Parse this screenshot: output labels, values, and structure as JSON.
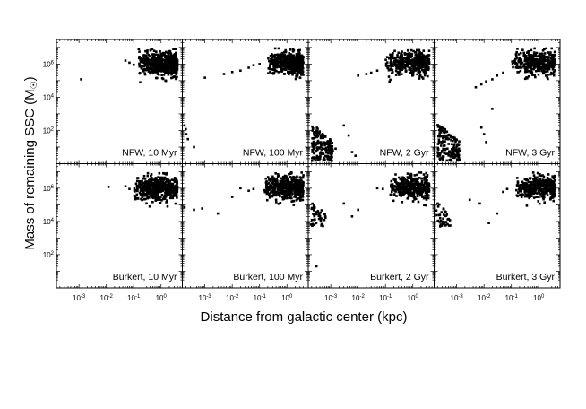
{
  "figure": {
    "xlabel": "Distance from galactic center (kpc)",
    "ylabel": "Mass of remaining SSC (M",
    "ylabel_unit_symbol": "☉",
    "ylabel_close": ")"
  },
  "chart_data": {
    "type": "scatter",
    "layout": {
      "rows": 2,
      "cols": 4,
      "shared_axes": true
    },
    "x_scale": "log",
    "y_scale": "log",
    "xlim": [
      0.00015,
      6
    ],
    "ylim": [
      1,
      30000000
    ],
    "x_tick_labels": [
      {
        "value": 0.001,
        "mantissa": "10",
        "exp": "-3"
      },
      {
        "value": 0.01,
        "mantissa": "10",
        "exp": "-2"
      },
      {
        "value": 0.1,
        "mantissa": "10",
        "exp": "-1"
      },
      {
        "value": 1,
        "mantissa": "10",
        "exp": "0"
      }
    ],
    "y_tick_labels": [
      {
        "value": 100,
        "mantissa": "10",
        "exp": "2"
      },
      {
        "value": 10000,
        "mantissa": "10",
        "exp": "4"
      },
      {
        "value": 1000000,
        "mantissa": "10",
        "exp": "6"
      }
    ],
    "marker_color": "#000000",
    "panels": [
      {
        "label": "NFW, 10 Myr",
        "row": 0,
        "col": 0,
        "main_cluster": {
          "x_range": [
            0.15,
            4
          ],
          "y_center": 1000000,
          "y_spread_dex": 0.35,
          "count": 550
        },
        "outliers": [
          [
            0.0012,
            120000
          ],
          [
            0.05,
            1600000
          ],
          [
            0.07,
            1200000
          ],
          [
            0.1,
            900000
          ]
        ],
        "core_band": null
      },
      {
        "label": "NFW, 100 Myr",
        "row": 0,
        "col": 1,
        "main_cluster": {
          "x_range": [
            0.2,
            4
          ],
          "y_center": 1100000,
          "y_spread_dex": 0.33,
          "count": 500
        },
        "outliers": [
          [
            0.001,
            150000
          ],
          [
            0.005,
            250000
          ],
          [
            0.01,
            330000
          ],
          [
            0.02,
            400000
          ],
          [
            0.04,
            600000
          ],
          [
            0.06,
            850000
          ],
          [
            0.1,
            1000000
          ],
          [
            0.00018,
            200
          ],
          [
            0.0002,
            120
          ],
          [
            0.00021,
            60
          ],
          [
            0.00024,
            30
          ],
          [
            0.0004,
            10
          ]
        ],
        "core_band": null
      },
      {
        "label": "NFW, 2 Gyr",
        "row": 0,
        "col": 2,
        "main_cluster": {
          "x_range": [
            0.1,
            4
          ],
          "y_center": 1100000,
          "y_spread_dex": 0.35,
          "count": 400
        },
        "outliers": [
          [
            0.01,
            200000
          ],
          [
            0.02,
            250000
          ],
          [
            0.03,
            300000
          ],
          [
            0.05,
            400000
          ],
          [
            0.0015,
            8
          ],
          [
            0.003,
            200
          ],
          [
            0.0045,
            50
          ],
          [
            0.006,
            5
          ],
          [
            0.008,
            3
          ]
        ],
        "core_band": {
          "x_range": [
            0.0002,
            0.0012
          ],
          "y_range": [
            1.5,
            300
          ],
          "count": 170
        }
      },
      {
        "label": "NFW, 3 Gyr",
        "row": 0,
        "col": 3,
        "main_cluster": {
          "x_range": [
            0.1,
            4
          ],
          "y_center": 1100000,
          "y_spread_dex": 0.35,
          "count": 380
        },
        "outliers": [
          [
            0.005,
            40000
          ],
          [
            0.008,
            60000
          ],
          [
            0.012,
            90000
          ],
          [
            0.02,
            120000
          ],
          [
            0.03,
            200000
          ],
          [
            0.05,
            300000
          ],
          [
            0.02,
            2000
          ],
          [
            0.008,
            150
          ],
          [
            0.01,
            60
          ],
          [
            0.012,
            20
          ]
        ],
        "core_band": {
          "x_range": [
            0.0002,
            0.0013
          ],
          "y_range": [
            1.5,
            300
          ],
          "count": 160
        }
      },
      {
        "label": "Burkert, 10 Myr",
        "row": 1,
        "col": 0,
        "main_cluster": {
          "x_range": [
            0.1,
            4
          ],
          "y_center": 1000000,
          "y_spread_dex": 0.35,
          "count": 550
        },
        "outliers": [
          [
            0.012,
            1200000
          ],
          [
            0.05,
            1300000
          ],
          [
            0.07,
            900000
          ]
        ],
        "core_band": null
      },
      {
        "label": "Burkert, 100 Myr",
        "row": 1,
        "col": 1,
        "main_cluster": {
          "x_range": [
            0.15,
            4
          ],
          "y_center": 1100000,
          "y_spread_dex": 0.35,
          "count": 500
        },
        "outliers": [
          [
            0.00018,
            70000
          ],
          [
            0.0004,
            50000
          ],
          [
            0.0008,
            60000
          ],
          [
            0.003,
            30000
          ],
          [
            0.01,
            300000
          ],
          [
            0.02,
            1000000
          ],
          [
            0.04,
            700000
          ],
          [
            0.06,
            900000
          ]
        ],
        "core_band": null
      },
      {
        "label": "Burkert, 2 Gyr",
        "row": 1,
        "col": 2,
        "main_cluster": {
          "x_range": [
            0.15,
            4
          ],
          "y_center": 1100000,
          "y_spread_dex": 0.35,
          "count": 420
        },
        "outliers": [
          [
            0.0003,
            20
          ],
          [
            0.003,
            120000
          ],
          [
            0.006,
            20000
          ],
          [
            0.01,
            50000
          ],
          [
            0.05,
            1000000
          ],
          [
            0.08,
            900000
          ]
        ],
        "core_band": {
          "x_range": [
            0.00018,
            0.0007
          ],
          "y_range": [
            5000,
            200000
          ],
          "count": 45
        }
      },
      {
        "label": "Burkert, 3 Gyr",
        "row": 1,
        "col": 3,
        "main_cluster": {
          "x_range": [
            0.15,
            4
          ],
          "y_center": 1100000,
          "y_spread_dex": 0.35,
          "count": 400
        },
        "outliers": [
          [
            0.003,
            200000
          ],
          [
            0.007,
            120000
          ],
          [
            0.015,
            8000
          ],
          [
            0.03,
            30000
          ],
          [
            0.05,
            600000
          ],
          [
            0.07,
            900000
          ]
        ],
        "core_band": {
          "x_range": [
            0.00018,
            0.0006
          ],
          "y_range": [
            5000,
            150000
          ],
          "count": 40
        }
      }
    ]
  }
}
